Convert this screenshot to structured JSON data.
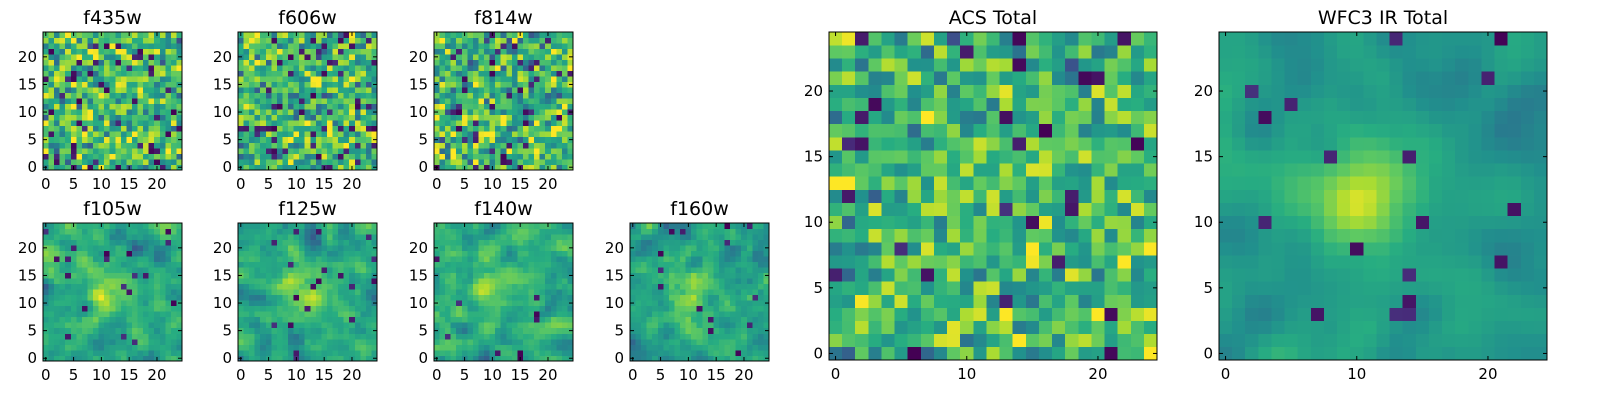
{
  "figure": {
    "colormap": "viridis",
    "palette": [
      "#440154",
      "#3b528b",
      "#21918c",
      "#5ec962",
      "#fde725"
    ],
    "axis_color": "#000000",
    "background": "#ffffff"
  },
  "chart_data": [
    {
      "type": "heatmap",
      "title": "f435w",
      "size": 25,
      "xlim": [
        0,
        24
      ],
      "ylim": [
        0,
        24
      ],
      "xticks": [
        0,
        5,
        10,
        15,
        20
      ],
      "yticks": [
        0,
        5,
        10,
        15,
        20
      ],
      "xtick_labels": [
        "0",
        "5",
        "10",
        "15",
        "20"
      ],
      "ytick_labels": [
        "0",
        "5",
        "10",
        "15",
        "20"
      ],
      "value_range": [
        0,
        1
      ],
      "value_mean": 0.68,
      "value_spread": 0.15,
      "central_source": 0.0,
      "smoothing": 0,
      "low_pixel_fraction": 0.04,
      "seed": 11
    },
    {
      "type": "heatmap",
      "title": "f606w",
      "size": 25,
      "xlim": [
        0,
        24
      ],
      "ylim": [
        0,
        24
      ],
      "xticks": [
        0,
        5,
        10,
        15,
        20
      ],
      "yticks": [
        0,
        5,
        10,
        15,
        20
      ],
      "xtick_labels": [
        "0",
        "5",
        "10",
        "15",
        "20"
      ],
      "ytick_labels": [
        "0",
        "5",
        "10",
        "15",
        "20"
      ],
      "value_range": [
        0,
        1
      ],
      "value_mean": 0.68,
      "value_spread": 0.15,
      "central_source": 0.0,
      "smoothing": 0,
      "low_pixel_fraction": 0.04,
      "seed": 23
    },
    {
      "type": "heatmap",
      "title": "f814w",
      "size": 25,
      "xlim": [
        0,
        24
      ],
      "ylim": [
        0,
        24
      ],
      "xticks": [
        0,
        5,
        10,
        15,
        20
      ],
      "yticks": [
        0,
        5,
        10,
        15,
        20
      ],
      "xtick_labels": [
        "0",
        "5",
        "10",
        "15",
        "20"
      ],
      "ytick_labels": [
        "0",
        "5",
        "10",
        "15",
        "20"
      ],
      "value_range": [
        0,
        1
      ],
      "value_mean": 0.68,
      "value_spread": 0.16,
      "central_source": 0.0,
      "smoothing": 0,
      "low_pixel_fraction": 0.04,
      "seed": 37
    },
    {
      "type": "heatmap",
      "title": "f105w",
      "size": 25,
      "xlim": [
        0,
        24
      ],
      "ylim": [
        0,
        24
      ],
      "xticks": [
        0,
        5,
        10,
        15,
        20
      ],
      "yticks": [
        0,
        5,
        10,
        15,
        20
      ],
      "xtick_labels": [
        "0",
        "5",
        "10",
        "15",
        "20"
      ],
      "ytick_labels": [
        "0",
        "5",
        "10",
        "15",
        "20"
      ],
      "value_range": [
        0,
        1
      ],
      "value_mean": 0.62,
      "value_spread": 0.15,
      "central_source": 0.18,
      "smoothing": 1,
      "low_pixel_fraction": 0.03,
      "seed": 41
    },
    {
      "type": "heatmap",
      "title": "f125w",
      "size": 25,
      "xlim": [
        0,
        24
      ],
      "ylim": [
        0,
        24
      ],
      "xticks": [
        0,
        5,
        10,
        15,
        20
      ],
      "yticks": [
        0,
        5,
        10,
        15,
        20
      ],
      "xtick_labels": [
        "0",
        "5",
        "10",
        "15",
        "20"
      ],
      "ytick_labels": [
        "0",
        "5",
        "10",
        "15",
        "20"
      ],
      "value_range": [
        0,
        1
      ],
      "value_mean": 0.62,
      "value_spread": 0.15,
      "central_source": 0.25,
      "smoothing": 1,
      "low_pixel_fraction": 0.03,
      "seed": 53
    },
    {
      "type": "heatmap",
      "title": "f140w",
      "size": 25,
      "xlim": [
        0,
        24
      ],
      "ylim": [
        0,
        24
      ],
      "xticks": [
        0,
        5,
        10,
        15,
        20
      ],
      "yticks": [
        0,
        5,
        10,
        15,
        20
      ],
      "xtick_labels": [
        "0",
        "5",
        "10",
        "15",
        "20"
      ],
      "ytick_labels": [
        "0",
        "5",
        "10",
        "15",
        "20"
      ],
      "value_range": [
        0,
        1
      ],
      "value_mean": 0.65,
      "value_spread": 0.15,
      "central_source": 0.15,
      "smoothing": 1,
      "low_pixel_fraction": 0.03,
      "seed": 67
    },
    {
      "type": "heatmap",
      "title": "f160w",
      "size": 25,
      "xlim": [
        0,
        24
      ],
      "ylim": [
        0,
        24
      ],
      "xticks": [
        0,
        5,
        10,
        15,
        20
      ],
      "yticks": [
        0,
        5,
        10,
        15,
        20
      ],
      "xtick_labels": [
        "0",
        "5",
        "10",
        "15",
        "20"
      ],
      "ytick_labels": [
        "0",
        "5",
        "10",
        "15",
        "20"
      ],
      "value_range": [
        0,
        1
      ],
      "value_mean": 0.6,
      "value_spread": 0.16,
      "central_source": 0.2,
      "smoothing": 1,
      "low_pixel_fraction": 0.03,
      "seed": 79
    },
    {
      "type": "heatmap",
      "title": "ACS Total",
      "size": 25,
      "xlim": [
        0,
        24
      ],
      "ylim": [
        0,
        24
      ],
      "xticks": [
        0,
        10,
        20
      ],
      "yticks": [
        0,
        5,
        10,
        15,
        20
      ],
      "xtick_labels": [
        "0",
        "10",
        "20"
      ],
      "ytick_labels": [
        "0",
        "5",
        "10",
        "15",
        "20"
      ],
      "value_range": [
        0,
        1
      ],
      "value_mean": 0.66,
      "value_spread": 0.13,
      "central_source": 0.08,
      "smoothing": 0,
      "low_pixel_fraction": 0.03,
      "seed": 97
    },
    {
      "type": "heatmap",
      "title": "WFC3 IR Total",
      "size": 25,
      "xlim": [
        0,
        24
      ],
      "ylim": [
        0,
        24
      ],
      "xticks": [
        0,
        10,
        20
      ],
      "yticks": [
        0,
        5,
        10,
        15,
        20
      ],
      "xtick_labels": [
        "0",
        "10",
        "20"
      ],
      "ytick_labels": [
        "0",
        "5",
        "10",
        "15",
        "20"
      ],
      "value_range": [
        0,
        1
      ],
      "value_mean": 0.55,
      "value_spread": 0.12,
      "central_source": 0.4,
      "smoothing": 2,
      "low_pixel_fraction": 0.02,
      "seed": 109
    }
  ]
}
